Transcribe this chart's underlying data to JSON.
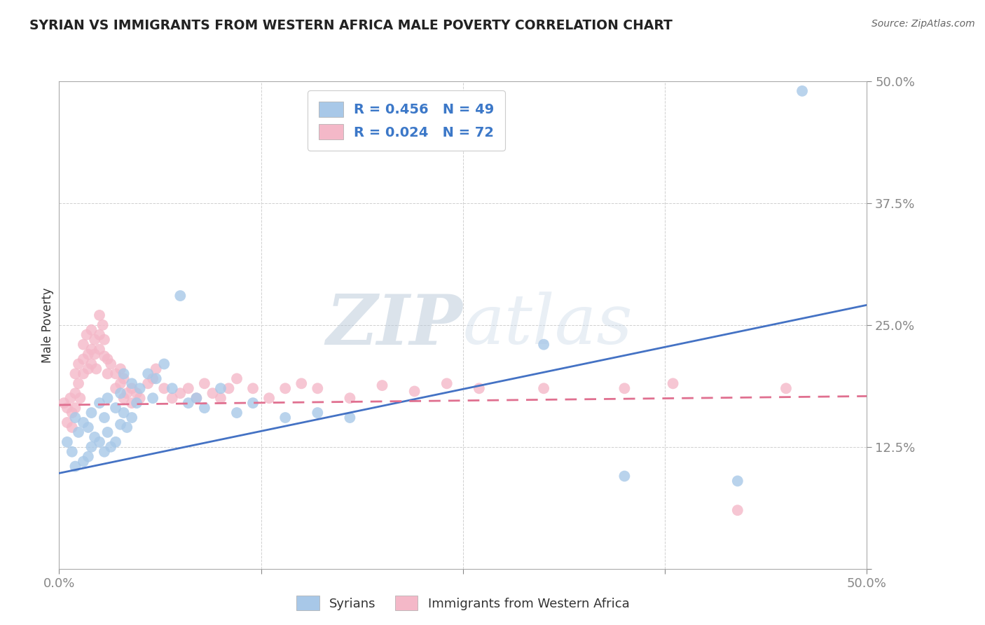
{
  "title": "SYRIAN VS IMMIGRANTS FROM WESTERN AFRICA MALE POVERTY CORRELATION CHART",
  "source": "Source: ZipAtlas.com",
  "xlabel": "",
  "ylabel": "Male Poverty",
  "xlim": [
    0.0,
    0.5
  ],
  "ylim": [
    0.0,
    0.5
  ],
  "xticks": [
    0.0,
    0.125,
    0.25,
    0.375,
    0.5
  ],
  "yticks": [
    0.0,
    0.125,
    0.25,
    0.375,
    0.5
  ],
  "xticklabels": [
    "0.0%",
    "",
    "",
    "",
    "50.0%"
  ],
  "yticklabels": [
    "",
    "12.5%",
    "25.0%",
    "37.5%",
    "50.0%"
  ],
  "watermark_ZIP": "ZIP",
  "watermark_atlas": "atlas",
  "group1_label": "Syrians",
  "group1_color": "#a8c8e8",
  "group1_R": 0.456,
  "group1_N": 49,
  "group1_line_color": "#4472c4",
  "group1_intercept": 0.098,
  "group1_slope": 0.345,
  "group2_label": "Immigrants from Western Africa",
  "group2_color": "#f4b8c8",
  "group2_R": 0.024,
  "group2_N": 72,
  "group2_line_color": "#e07090",
  "group2_intercept": 0.168,
  "group2_slope": 0.018,
  "legend_R1_color": "#4472c4",
  "legend_R2_color": "#e07090",
  "syrians_x": [
    0.005,
    0.008,
    0.01,
    0.01,
    0.012,
    0.015,
    0.015,
    0.018,
    0.018,
    0.02,
    0.02,
    0.022,
    0.025,
    0.025,
    0.028,
    0.028,
    0.03,
    0.03,
    0.032,
    0.035,
    0.035,
    0.038,
    0.038,
    0.04,
    0.04,
    0.042,
    0.045,
    0.045,
    0.048,
    0.05,
    0.055,
    0.058,
    0.06,
    0.065,
    0.07,
    0.075,
    0.08,
    0.085,
    0.09,
    0.1,
    0.11,
    0.12,
    0.14,
    0.16,
    0.18,
    0.3,
    0.35,
    0.42,
    0.46
  ],
  "syrians_y": [
    0.13,
    0.12,
    0.155,
    0.105,
    0.14,
    0.15,
    0.11,
    0.145,
    0.115,
    0.16,
    0.125,
    0.135,
    0.17,
    0.13,
    0.155,
    0.12,
    0.175,
    0.14,
    0.125,
    0.165,
    0.13,
    0.18,
    0.148,
    0.2,
    0.16,
    0.145,
    0.19,
    0.155,
    0.17,
    0.185,
    0.2,
    0.175,
    0.195,
    0.21,
    0.185,
    0.28,
    0.17,
    0.175,
    0.165,
    0.185,
    0.16,
    0.17,
    0.155,
    0.16,
    0.155,
    0.23,
    0.095,
    0.09,
    0.49
  ],
  "wafricans_x": [
    0.003,
    0.005,
    0.005,
    0.007,
    0.008,
    0.008,
    0.01,
    0.01,
    0.01,
    0.012,
    0.012,
    0.013,
    0.015,
    0.015,
    0.015,
    0.017,
    0.018,
    0.018,
    0.02,
    0.02,
    0.02,
    0.022,
    0.022,
    0.023,
    0.025,
    0.025,
    0.025,
    0.027,
    0.028,
    0.028,
    0.03,
    0.03,
    0.032,
    0.035,
    0.035,
    0.038,
    0.038,
    0.04,
    0.04,
    0.042,
    0.045,
    0.045,
    0.048,
    0.05,
    0.055,
    0.058,
    0.06,
    0.065,
    0.07,
    0.075,
    0.08,
    0.085,
    0.09,
    0.095,
    0.1,
    0.105,
    0.11,
    0.12,
    0.13,
    0.14,
    0.15,
    0.16,
    0.18,
    0.2,
    0.22,
    0.24,
    0.26,
    0.3,
    0.35,
    0.38,
    0.42,
    0.45
  ],
  "wafricans_y": [
    0.17,
    0.165,
    0.15,
    0.175,
    0.16,
    0.145,
    0.2,
    0.18,
    0.165,
    0.21,
    0.19,
    0.175,
    0.23,
    0.215,
    0.2,
    0.24,
    0.22,
    0.205,
    0.245,
    0.225,
    0.21,
    0.235,
    0.22,
    0.205,
    0.26,
    0.24,
    0.225,
    0.25,
    0.235,
    0.218,
    0.215,
    0.2,
    0.21,
    0.2,
    0.185,
    0.205,
    0.19,
    0.175,
    0.195,
    0.18,
    0.185,
    0.17,
    0.18,
    0.175,
    0.19,
    0.195,
    0.205,
    0.185,
    0.175,
    0.18,
    0.185,
    0.175,
    0.19,
    0.18,
    0.175,
    0.185,
    0.195,
    0.185,
    0.175,
    0.185,
    0.19,
    0.185,
    0.175,
    0.188,
    0.182,
    0.19,
    0.185,
    0.185,
    0.185,
    0.19,
    0.06,
    0.185
  ]
}
